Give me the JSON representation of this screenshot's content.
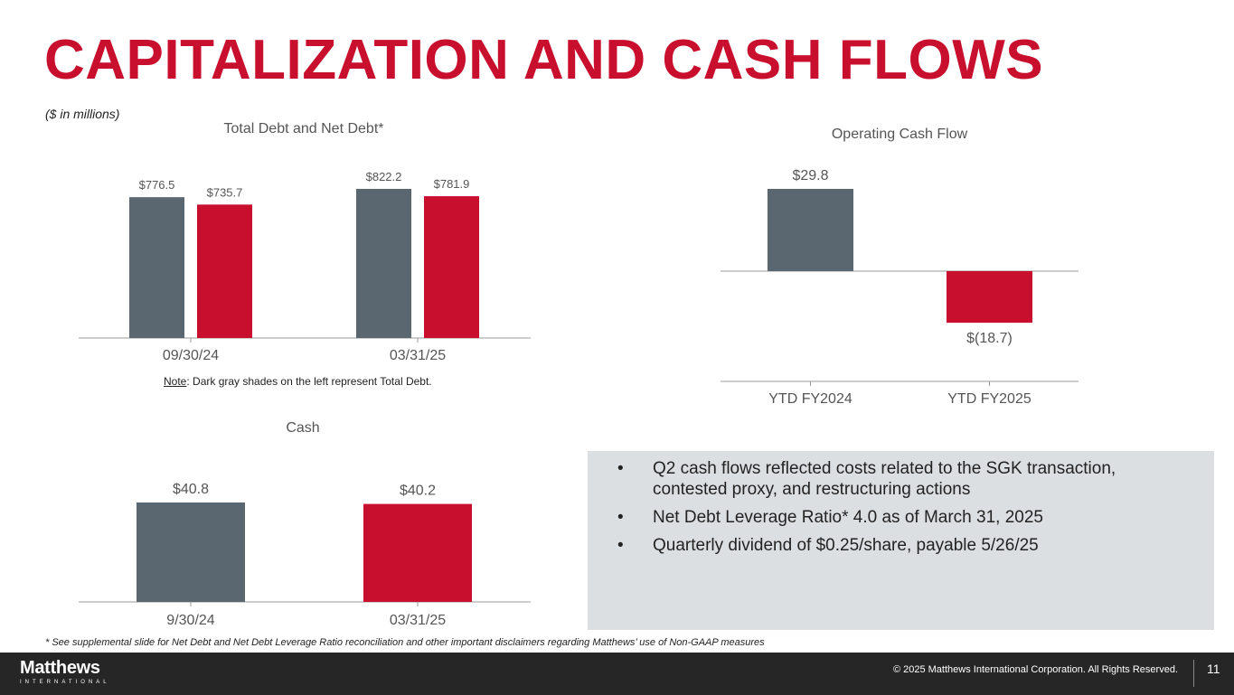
{
  "title": "CAPITALIZATION AND CASH FLOWS",
  "units_note": "($ in millions)",
  "note": {
    "label": "Note",
    "text": ": Dark gray shades on the left represent Total Debt."
  },
  "colors": {
    "accent": "#c8102e",
    "gray": "#5b6770",
    "axis": "#999999"
  },
  "bullets": [
    "Q2 cash flows reflected costs related to the SGK transaction, contested proxy, and restructuring actions",
    "Net Debt Leverage Ratio* 4.0 as of March 31, 2025",
    "Quarterly dividend of $0.25/share, payable 5/26/25"
  ],
  "footnote": "* See supplemental slide for Net Debt and Net Debt Leverage Ratio reconciliation and other important disclaimers regarding Matthews’ use of Non-GAAP measures",
  "footer": {
    "logo_name": "Matthews",
    "logo_sub": "INTERNATIONAL",
    "copyright": "© 2025 Matthews International Corporation. All Rights Reserved.",
    "page_number": "11"
  },
  "chart_data": [
    {
      "type": "bar",
      "title": "Total Debt and Net Debt*",
      "categories": [
        "09/30/24",
        "03/31/25"
      ],
      "series": [
        {
          "values": [
            776.5,
            822.2
          ],
          "labels": [
            "$776.5",
            "$822.2"
          ],
          "color": "#5b6770"
        },
        {
          "values": [
            735.7,
            781.9
          ],
          "labels": [
            "$735.7",
            "$781.9"
          ],
          "color": "#c8102e"
        }
      ],
      "ylim": [
        0,
        822.2
      ]
    },
    {
      "type": "bar",
      "title": "Operating Cash Flow",
      "categories": [
        "YTD FY2024",
        "YTD FY2025"
      ],
      "values": [
        29.8,
        -18.7
      ],
      "labels": [
        "$29.8",
        "$(18.7)"
      ],
      "colors": [
        "#5b6770",
        "#c8102e"
      ]
    },
    {
      "type": "bar",
      "title": "Cash",
      "categories": [
        "9/30/24",
        "03/31/25"
      ],
      "values": [
        40.8,
        40.2
      ],
      "labels": [
        "$40.8",
        "$40.2"
      ],
      "colors": [
        "#5b6770",
        "#c8102e"
      ]
    }
  ]
}
